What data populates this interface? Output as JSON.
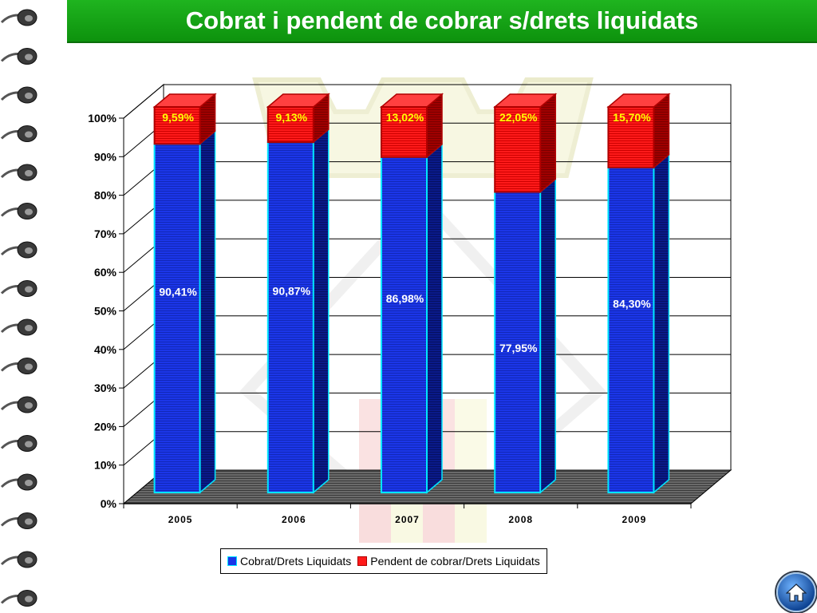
{
  "title": "Cobrat i pendent de cobrar s/drets liquidats",
  "colors": {
    "title_bar": "#10a010",
    "cobrat": "#1b36e8",
    "cobrat_edge": "#00e5ff",
    "pendent": "#ff1a1a",
    "pendent_edge": "#b00000",
    "pendent_label": "#ffff00",
    "cobrat_label": "#ffffff"
  },
  "legend": {
    "cobrat": "Cobrat/Drets Liquidats",
    "pendent": "Pendent de cobrar/Drets Liquidats"
  },
  "home_icon": "home-icon",
  "chart_data": {
    "type": "bar",
    "stacked": true,
    "three_d": true,
    "categories": [
      "2005",
      "2006",
      "2007",
      "2008",
      "2009"
    ],
    "series": [
      {
        "name": "Cobrat/Drets Liquidats",
        "values": [
          90.41,
          90.87,
          86.98,
          77.95,
          84.3
        ],
        "labels": [
          "90,41%",
          "90,87%",
          "86,98%",
          "77,95%",
          "84,30%"
        ]
      },
      {
        "name": "Pendent de cobrar/Drets Liquidats",
        "values": [
          9.59,
          9.13,
          13.02,
          22.05,
          15.7
        ],
        "labels": [
          "9,59%",
          "9,13%",
          "13,02%",
          "22,05%",
          "15,70%"
        ]
      }
    ],
    "yticks": [
      "0%",
      "10%",
      "20%",
      "30%",
      "40%",
      "50%",
      "60%",
      "70%",
      "80%",
      "90%",
      "100%"
    ],
    "ylim": [
      0,
      100
    ],
    "grid": true,
    "legend_position": "bottom"
  }
}
